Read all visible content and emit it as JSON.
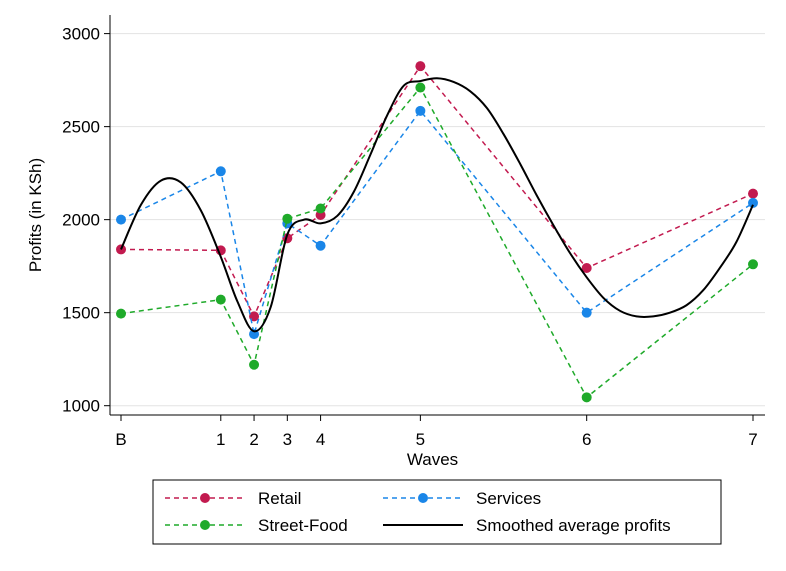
{
  "chart_data": {
    "type": "line",
    "xlabel": "Waves",
    "ylabel": "Profits (in KSh)",
    "x_tick_labels": [
      "B",
      "1",
      "2",
      "3",
      "4",
      "5",
      "6",
      "7"
    ],
    "x_tick_values": [
      0,
      3,
      4,
      5,
      6,
      9,
      14,
      19
    ],
    "xlim": [
      0,
      19
    ],
    "ylim": [
      950,
      3100
    ],
    "y_ticks": [
      1000,
      1500,
      2000,
      2500,
      3000
    ],
    "grid": "horizontal",
    "legend_position": "bottom",
    "series": [
      {
        "name": "Retail",
        "style": "dashed-marker",
        "color": "#c21a4f",
        "x": [
          0,
          3,
          4,
          5,
          6,
          9,
          14,
          19
        ],
        "values": [
          1840,
          1835,
          1480,
          1900,
          2025,
          2825,
          1740,
          2140
        ]
      },
      {
        "name": "Services",
        "style": "dashed-marker",
        "color": "#1a86e8",
        "x": [
          0,
          3,
          4,
          5,
          6,
          9,
          14,
          19
        ],
        "values": [
          2000,
          2260,
          1385,
          1980,
          1860,
          2585,
          1500,
          2090
        ]
      },
      {
        "name": "Street-Food",
        "style": "dashed-marker",
        "color": "#1faa2a",
        "x": [
          0,
          3,
          4,
          5,
          6,
          9,
          14,
          19
        ],
        "values": [
          1495,
          1570,
          1220,
          2005,
          2060,
          2710,
          1045,
          1760
        ]
      },
      {
        "name": "Smoothed average profits",
        "style": "solid",
        "color": "#000000",
        "x": [
          0,
          0.6,
          1.2,
          1.8,
          2.4,
          3.0,
          3.5,
          4.0,
          4.5,
          5.0,
          5.5,
          6.0,
          6.5,
          7.0,
          7.5,
          8.0,
          8.5,
          9.0,
          9.5,
          10.0,
          10.5,
          11.0,
          11.5,
          12.0,
          12.5,
          13.0,
          13.5,
          14.0,
          14.5,
          15.0,
          15.5,
          16.0,
          16.5,
          17.0,
          17.5,
          18.0,
          18.5,
          19.0
        ],
        "values": [
          1840,
          2080,
          2210,
          2200,
          2050,
          1800,
          1560,
          1400,
          1530,
          1920,
          2000,
          1980,
          2020,
          2150,
          2350,
          2560,
          2720,
          2745,
          2760,
          2740,
          2690,
          2600,
          2460,
          2300,
          2130,
          1970,
          1820,
          1690,
          1580,
          1510,
          1480,
          1480,
          1500,
          1540,
          1620,
          1740,
          1880,
          2080
        ]
      }
    ]
  },
  "legend": {
    "items": [
      "Retail",
      "Services",
      "Street-Food",
      "Smoothed average profits"
    ]
  }
}
